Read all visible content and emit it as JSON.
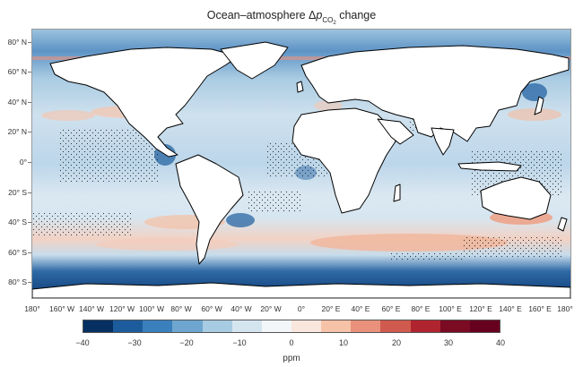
{
  "map": {
    "title_prefix": "Ocean–atmosphere Δ",
    "title_var": "p",
    "title_sub": "CO",
    "title_subsub": "2",
    "title_suffix": " change",
    "lat_labels": [
      "80° N",
      "60° N",
      "40° N",
      "20° N",
      "0°",
      "20° S",
      "40° S",
      "60° S",
      "80° S"
    ],
    "lon_labels": [
      "180°",
      "160° W",
      "140° W",
      "120° W",
      "100° W",
      "80° W",
      "60° W",
      "40° W",
      "20° W",
      "0°",
      "20° E",
      "40° E",
      "60° E",
      "80° E",
      "100° E",
      "120° E",
      "140° E",
      "160° E",
      "180°"
    ],
    "land_color": "#ffffff",
    "coast_color": "#000000"
  },
  "colorbar": {
    "ticks": [
      "−40",
      "−30",
      "−20",
      "−10",
      "0",
      "10",
      "20",
      "30",
      "40"
    ],
    "unit": "ppm",
    "colors": [
      "#053061",
      "#1d5c9c",
      "#3a80bc",
      "#6ea6cf",
      "#a7cbe2",
      "#d5e5f0",
      "#f3f6f8",
      "#f9e6dc",
      "#f6c2a8",
      "#e9917a",
      "#cf5a4d",
      "#b0242f",
      "#7a0b23",
      "#67001f"
    ]
  }
}
